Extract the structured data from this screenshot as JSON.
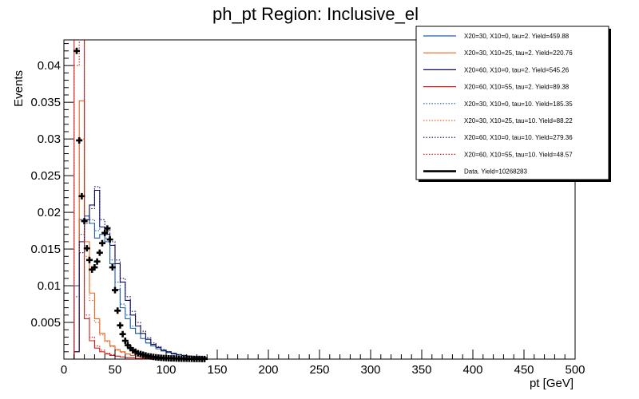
{
  "chart_data": {
    "type": "line",
    "title": "ph_pt Region: Inclusive_el",
    "xlabel": "pt [GeV]",
    "ylabel": "Events",
    "xlim": [
      0,
      500
    ],
    "ylim": [
      0,
      0.0435
    ],
    "x_ticks": [
      0,
      50,
      100,
      150,
      200,
      250,
      300,
      350,
      400,
      450,
      500
    ],
    "y_ticks": [
      0.005,
      0.01,
      0.015,
      0.02,
      0.025,
      0.03,
      0.035,
      0.04
    ],
    "y_tick_labels": [
      "0.005",
      "0.01",
      "0.015",
      "0.02",
      "0.025",
      "0.03",
      "0.035",
      "0.04"
    ],
    "legend_position": "top-right",
    "histogram_bin_edges": [
      10,
      15,
      20,
      25,
      30,
      35,
      40,
      45,
      50,
      55,
      60,
      65,
      70,
      75,
      80,
      85,
      90,
      95,
      100,
      105,
      110,
      115,
      120,
      125,
      130,
      135,
      140
    ],
    "series": [
      {
        "name": "X20=30, X10=0, tau=2. Yield=459.88",
        "color": "#1f5fa8",
        "dash": "solid",
        "values": [
          0.01,
          0.019,
          0.0195,
          0.0185,
          0.0165,
          0.017,
          0.016,
          0.013,
          0.0095,
          0.007,
          0.0055,
          0.0042,
          0.0035,
          0.0028,
          0.0022,
          0.0018,
          0.0014,
          0.0011,
          0.0009,
          0.0007,
          0.0006,
          0.0005,
          0.0004,
          0.0003,
          0.0003,
          0.0002
        ]
      },
      {
        "name": "X20=30, X10=25, tau=2. Yield=220.76",
        "color": "#e8641e",
        "dash": "solid",
        "values": [
          0.001,
          0.0352,
          0.016,
          0.009,
          0.0055,
          0.0035,
          0.0025,
          0.0018,
          0.0013,
          0.001,
          0.0007,
          0.0005,
          0.0004,
          0.0003,
          0.0002,
          0.0002,
          0.0001,
          0.0001,
          0.0001,
          0.0001,
          0.0001,
          0.0,
          0.0,
          0.0,
          0.0,
          0.0
        ]
      },
      {
        "name": "X20=60, X10=0, tau=2. Yield=545.26",
        "color": "#0a0a5a",
        "dash": "solid",
        "values": [
          0.001,
          0.016,
          0.019,
          0.021,
          0.023,
          0.018,
          0.017,
          0.0155,
          0.013,
          0.0105,
          0.008,
          0.006,
          0.0045,
          0.0035,
          0.0027,
          0.002,
          0.0016,
          0.0012,
          0.001,
          0.0008,
          0.0006,
          0.0005,
          0.0004,
          0.0003,
          0.0003,
          0.0002
        ]
      },
      {
        "name": "X20=60, X10=55, tau=2. Yield=89.38",
        "color": "#d0201e",
        "dash": "solid",
        "values": [
          0.0435,
          0.0435,
          0.0055,
          0.0025,
          0.0015,
          0.001,
          0.0007,
          0.0005,
          0.0004,
          0.0003,
          0.0002,
          0.0002,
          0.0001,
          0.0001,
          0.0001,
          0.0001,
          0.0,
          0.0,
          0.0,
          0.0,
          0.0,
          0.0,
          0.0,
          0.0,
          0.0,
          0.0
        ]
      },
      {
        "name": "X20=30, X10=0, tau=10. Yield=185.35",
        "color": "#1f5fa8",
        "dash": "dotted",
        "values": [
          0.0085,
          0.017,
          0.0195,
          0.019,
          0.0175,
          0.018,
          0.0165,
          0.0135,
          0.0105,
          0.0075,
          0.006,
          0.0045,
          0.0035,
          0.0028,
          0.0022,
          0.0018,
          0.0014,
          0.0011,
          0.0009,
          0.0007,
          0.0006,
          0.0005,
          0.0004,
          0.0003,
          0.0003,
          0.0002
        ]
      },
      {
        "name": "X20=30, X10=25, tau=10. Yield=88.22",
        "color": "#e8641e",
        "dash": "dotted",
        "values": [
          0.001,
          0.03,
          0.014,
          0.008,
          0.005,
          0.0033,
          0.0024,
          0.0017,
          0.0012,
          0.0009,
          0.0007,
          0.0005,
          0.0004,
          0.0003,
          0.0002,
          0.0002,
          0.0001,
          0.0001,
          0.0001,
          0.0001,
          0.0,
          0.0,
          0.0,
          0.0,
          0.0,
          0.0
        ]
      },
      {
        "name": "X20=60, X10=0, tau=10. Yield=279.36",
        "color": "#0a0a5a",
        "dash": "dotted",
        "values": [
          0.001,
          0.0145,
          0.0185,
          0.0205,
          0.0235,
          0.019,
          0.018,
          0.016,
          0.0135,
          0.011,
          0.0085,
          0.0065,
          0.005,
          0.0038,
          0.0029,
          0.0022,
          0.0017,
          0.0013,
          0.001,
          0.0008,
          0.0006,
          0.0005,
          0.0004,
          0.0003,
          0.0003,
          0.0002
        ]
      },
      {
        "name": "X20=60, X10=55, tau=10. Yield=48.57",
        "color": "#d0201e",
        "dash": "dotted",
        "values": [
          0.04,
          0.0435,
          0.006,
          0.003,
          0.0018,
          0.0012,
          0.0008,
          0.0006,
          0.0004,
          0.0003,
          0.0002,
          0.0002,
          0.0001,
          0.0001,
          0.0001,
          0.0001,
          0.0,
          0.0,
          0.0,
          0.0,
          0.0,
          0.0,
          0.0,
          0.0,
          0.0,
          0.0
        ]
      }
    ],
    "data": {
      "name": "Data. Yield=10268283",
      "color": "#000000",
      "x": [
        12.5,
        15,
        17.5,
        20,
        22.5,
        25,
        27.5,
        30,
        32.5,
        35,
        37.5,
        40,
        42.5,
        45,
        47.5,
        50,
        52.5,
        55,
        57.5,
        60,
        62.5,
        65,
        67.5,
        70,
        72.5,
        75,
        77.5,
        80,
        82.5,
        85,
        87.5,
        90,
        92.5,
        95,
        97.5,
        100,
        102.5,
        105,
        107.5,
        110,
        112.5,
        115,
        117.5,
        120,
        122.5,
        125,
        127.5,
        130,
        132.5,
        135,
        137.5
      ],
      "y": [
        0.042,
        0.0298,
        0.0222,
        0.0188,
        0.0151,
        0.0135,
        0.0122,
        0.0125,
        0.0133,
        0.0145,
        0.0158,
        0.0172,
        0.0178,
        0.0163,
        0.0125,
        0.0094,
        0.0066,
        0.0046,
        0.0034,
        0.0025,
        0.0019,
        0.0015,
        0.0012,
        0.001,
        0.0008,
        0.0007,
        0.0006,
        0.0005,
        0.0004,
        0.00035,
        0.0003,
        0.00025,
        0.0002,
        0.00018,
        0.00015,
        0.00013,
        0.00011,
        0.0001,
        9e-05,
        8e-05,
        7e-05,
        6e-05,
        5e-05,
        5e-05,
        4e-05,
        4e-05,
        3e-05,
        3e-05,
        3e-05,
        2e-05,
        2e-05
      ]
    }
  }
}
